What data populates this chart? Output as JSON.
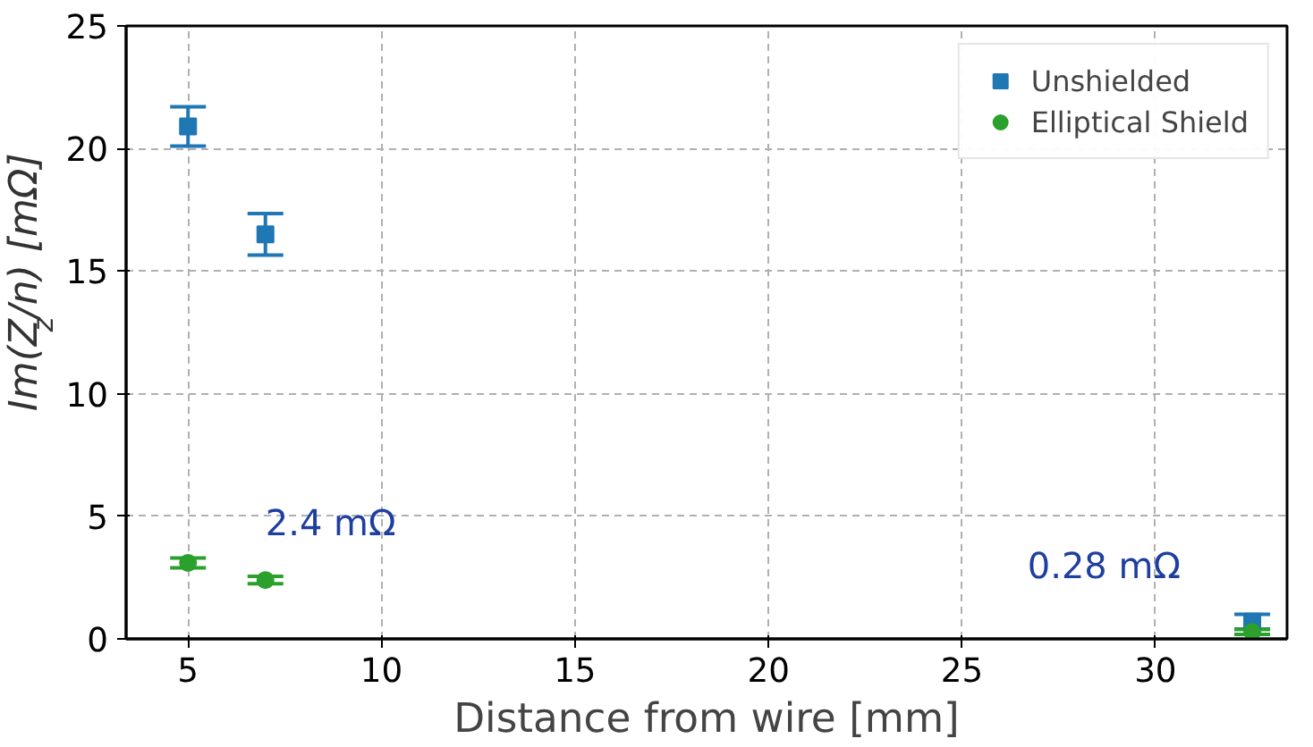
{
  "chart_data": {
    "type": "scatter",
    "xlabel": "Distance from wire [mm]",
    "ylabel": "Im(Z$_{z}$/n) [mΩ]",
    "xlim": [
      3.4,
      33.4
    ],
    "ylim": [
      0,
      25
    ],
    "xticks": [
      5,
      10,
      15,
      20,
      25,
      30
    ],
    "yticks": [
      0,
      5,
      10,
      15,
      20,
      25
    ],
    "grid": true,
    "legend": "top right",
    "series": [
      {
        "name": "Unshielded",
        "color": "#1f77b4",
        "marker": "square",
        "x": [
          5,
          7,
          32.5
        ],
        "values": [
          20.9,
          16.5,
          0.7
        ],
        "errors": [
          0.8,
          0.85,
          0.3
        ]
      },
      {
        "name": "Elliptical Shield",
        "color": "#2ca02c",
        "marker": "circle",
        "x": [
          5,
          7,
          32.5
        ],
        "values": [
          3.1,
          2.4,
          0.28
        ],
        "errors": [
          0.2,
          0.15,
          0.1
        ]
      }
    ],
    "annotations": [
      {
        "text": "2.4 mΩ",
        "x": 7,
        "y": 2.4
      },
      {
        "text": "0.28 mΩ",
        "x": 32.5,
        "y": 0.28
      }
    ]
  }
}
